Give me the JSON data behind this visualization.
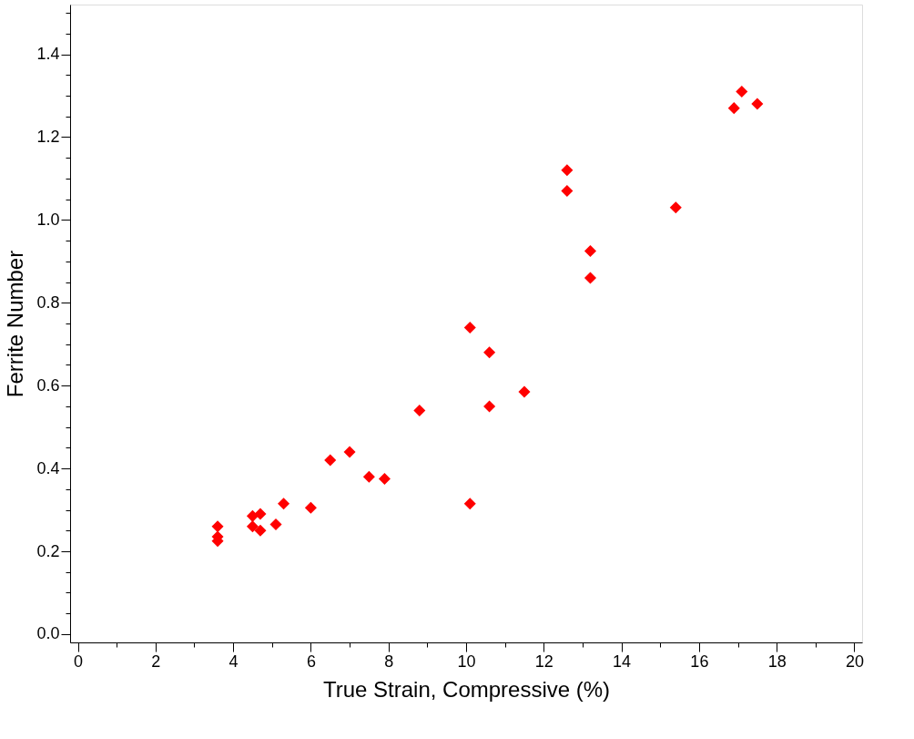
{
  "chart_data": {
    "type": "scatter",
    "xlabel": "True Strain, Compressive (%)",
    "ylabel": "Ferrite Number",
    "x": [
      3.6,
      3.6,
      3.6,
      4.5,
      4.5,
      4.7,
      4.7,
      5.1,
      5.3,
      6.0,
      6.5,
      7.0,
      7.5,
      7.9,
      8.8,
      10.1,
      10.1,
      10.6,
      10.6,
      11.5,
      12.6,
      12.6,
      13.2,
      13.2,
      15.4,
      16.9,
      17.1,
      17.5
    ],
    "series": [
      {
        "color": "#ff0000",
        "values": [
          0.26,
          0.235,
          0.225,
          0.285,
          0.26,
          0.29,
          0.25,
          0.265,
          0.315,
          0.305,
          0.42,
          0.44,
          0.38,
          0.375,
          0.54,
          0.74,
          0.315,
          0.68,
          0.55,
          0.585,
          1.12,
          1.07,
          0.925,
          0.86,
          1.03,
          1.27,
          1.31,
          1.28
        ]
      }
    ],
    "marker": "diamond",
    "grid": false,
    "xlim": [
      -0.2,
      20.2
    ],
    "ylim": [
      -0.02,
      1.52
    ],
    "xticks": [
      0,
      {
        "value": 1,
        "label": null
      },
      2,
      {
        "value": 3,
        "label": null
      },
      4,
      {
        "value": 5,
        "label": null
      },
      6,
      {
        "value": 7,
        "label": null
      },
      8,
      {
        "value": 9,
        "label": null
      },
      10,
      {
        "value": 11,
        "label": null
      },
      12,
      {
        "value": 13,
        "label": null
      },
      14,
      {
        "value": 15,
        "label": null
      },
      16,
      {
        "value": 17,
        "label": null
      },
      18,
      {
        "value": 19,
        "label": null
      },
      20
    ],
    "yticks": [
      {
        "value": 0,
        "label": "0.0"
      },
      {
        "value": 0.05,
        "label": null
      },
      {
        "value": 0.1,
        "label": null
      },
      {
        "value": 0.15,
        "label": null
      },
      {
        "value": 0.2,
        "label": "0.2"
      },
      {
        "value": 0.25,
        "label": null
      },
      {
        "value": 0.3,
        "label": null
      },
      {
        "value": 0.35,
        "label": null
      },
      {
        "value": 0.4,
        "label": "0.4"
      },
      {
        "value": 0.45,
        "label": null
      },
      {
        "value": 0.5,
        "label": null
      },
      {
        "value": 0.55,
        "label": null
      },
      {
        "value": 0.6,
        "label": "0.6"
      },
      {
        "value": 0.65,
        "label": null
      },
      {
        "value": 0.7,
        "label": null
      },
      {
        "value": 0.75,
        "label": null
      },
      {
        "value": 0.8,
        "label": "0.8"
      },
      {
        "value": 0.85,
        "label": null
      },
      {
        "value": 0.9,
        "label": null
      },
      {
        "value": 0.95,
        "label": null
      },
      {
        "value": 1.0,
        "label": "1.0"
      },
      {
        "value": 1.05,
        "label": null
      },
      {
        "value": 1.1,
        "label": null
      },
      {
        "value": 1.15,
        "label": null
      },
      {
        "value": 1.2,
        "label": "1.2"
      },
      {
        "value": 1.25,
        "label": null
      },
      {
        "value": 1.3,
        "label": null
      },
      {
        "value": 1.35,
        "label": null
      },
      {
        "value": 1.4,
        "label": "1.4"
      },
      {
        "value": 1.45,
        "label": null
      },
      {
        "value": 1.5,
        "label": null
      }
    ]
  }
}
